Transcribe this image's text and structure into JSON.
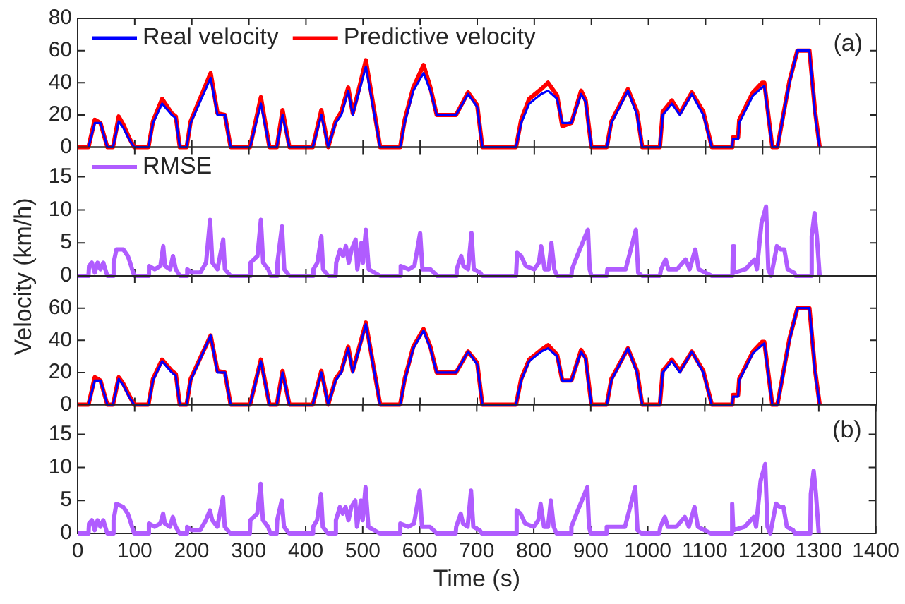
{
  "chart_data": [
    {
      "type": "line",
      "annotations": [
        "(a)"
      ],
      "legend": "top left",
      "tick_labels": "y",
      "xlim": [
        0,
        1400
      ],
      "xticks": [
        0,
        100,
        200,
        300,
        400,
        500,
        600,
        700,
        800,
        900,
        1000,
        1100,
        1200,
        1300,
        1400
      ],
      "ylim": [
        0,
        80
      ],
      "yticks": [
        0,
        20,
        40,
        60,
        80
      ],
      "series": [
        {
          "name": "Real velocity",
          "color": "#0000ff",
          "x": [
            19,
            30,
            40,
            52,
            62,
            72,
            80,
            90,
            99,
            124,
            132,
            148,
            165,
            172,
            179,
            191,
            198,
            233,
            245,
            258,
            268,
            302,
            321,
            336,
            349,
            359,
            371,
            412,
            427,
            439,
            452,
            462,
            474,
            482,
            492,
            505,
            530,
            565,
            573,
            588,
            606,
            618,
            629,
            663,
            684,
            700,
            709,
            768,
            777,
            791,
            812,
            824,
            840,
            849,
            865,
            882,
            890,
            900,
            927,
            935,
            964,
            980,
            989,
            1020,
            1025,
            1041,
            1055,
            1076,
            1096,
            1111,
            1147,
            1148,
            1157,
            1159,
            1183,
            1199,
            1203,
            1217,
            1226,
            1247,
            1261,
            1282,
            1292,
            1300
          ],
          "values": [
            0,
            15,
            15,
            0,
            0,
            16,
            12,
            5,
            0,
            0,
            15,
            27,
            20,
            18,
            0,
            0,
            15,
            43,
            20,
            20,
            0,
            0,
            27,
            0,
            0,
            20,
            0,
            0,
            20,
            0,
            15,
            20,
            35,
            20,
            33,
            50,
            0,
            0,
            15,
            35,
            46,
            35,
            20,
            20,
            33,
            25,
            0,
            0,
            15,
            27,
            33,
            35,
            30,
            15,
            15,
            33,
            28,
            0,
            0,
            15,
            35,
            20,
            0,
            0,
            20,
            27,
            20,
            33,
            20,
            0,
            0,
            5,
            5,
            15,
            32,
            37,
            38,
            0,
            0,
            40,
            60,
            60,
            20,
            0
          ]
        },
        {
          "name": "Predictive velocity",
          "color": "#ff0000",
          "x": [
            0,
            19,
            30,
            40,
            52,
            62,
            72,
            80,
            90,
            99,
            124,
            132,
            148,
            165,
            172,
            179,
            191,
            198,
            233,
            245,
            258,
            268,
            302,
            321,
            336,
            349,
            359,
            371,
            412,
            427,
            439,
            452,
            462,
            474,
            482,
            492,
            505,
            530,
            565,
            573,
            588,
            606,
            618,
            629,
            663,
            684,
            700,
            709,
            768,
            777,
            791,
            812,
            824,
            840,
            849,
            865,
            882,
            890,
            900,
            927,
            935,
            964,
            980,
            989,
            1020,
            1025,
            1041,
            1055,
            1076,
            1096,
            1111,
            1147,
            1148,
            1157,
            1159,
            1183,
            1199,
            1203,
            1217,
            1226,
            1247,
            1261,
            1282,
            1292,
            1300
          ],
          "values": [
            0,
            0,
            17,
            15,
            0,
            0,
            19,
            14,
            6,
            0,
            0,
            16,
            30,
            21,
            19,
            0,
            0,
            16,
            46,
            21,
            20,
            0,
            0,
            31,
            0,
            0,
            23,
            0,
            0,
            23,
            0,
            16,
            22,
            37,
            21,
            35,
            54,
            0,
            0,
            17,
            37,
            51,
            37,
            20,
            20,
            34,
            26,
            0,
            0,
            17,
            30,
            36,
            40,
            32,
            13,
            15,
            35,
            29,
            0,
            0,
            16,
            36,
            22,
            0,
            0,
            22,
            29,
            21,
            34,
            22,
            0,
            0,
            6,
            6,
            17,
            34,
            40,
            40,
            0,
            0,
            41,
            60,
            60,
            22,
            0
          ]
        }
      ]
    },
    {
      "type": "line",
      "ylabel": "Velocity (km/h)",
      "legend": "top left",
      "tick_labels": "y",
      "xlim": [
        0,
        1400
      ],
      "xticks": [
        0,
        100,
        200,
        300,
        400,
        500,
        600,
        700,
        800,
        900,
        1000,
        1100,
        1200,
        1300,
        1400
      ],
      "ylim": [
        0,
        19.5
      ],
      "yticks": [
        0,
        5,
        10,
        15
      ],
      "series": [
        {
          "name": "RMSE",
          "color": "#b05cff",
          "x": [
            0,
            19,
            20,
            25,
            30,
            35,
            40,
            45,
            52,
            62,
            63,
            68,
            80,
            88,
            92,
            99,
            124,
            125,
            135,
            145,
            150,
            153,
            162,
            167,
            172,
            179,
            191,
            192,
            200,
            215,
            225,
            232,
            236,
            245,
            255,
            258,
            268,
            302,
            303,
            315,
            321,
            325,
            334,
            338,
            349,
            350,
            358,
            362,
            371,
            412,
            413,
            420,
            427,
            430,
            439,
            452,
            453,
            460,
            465,
            470,
            475,
            480,
            487,
            490,
            497,
            500,
            505,
            510,
            530,
            565,
            566,
            580,
            590,
            600,
            604,
            618,
            630,
            663,
            664,
            672,
            676,
            684,
            690,
            694,
            705,
            709,
            768,
            770,
            777,
            785,
            800,
            808,
            812,
            818,
            825,
            830,
            835,
            840,
            865,
            866,
            875,
            894,
            897,
            900,
            927,
            928,
            945,
            960,
            978,
            982,
            989,
            1020,
            1022,
            1030,
            1035,
            1050,
            1065,
            1072,
            1082,
            1088,
            1111,
            1147,
            1148,
            1150,
            1170,
            1186,
            1190,
            1198,
            1206,
            1210,
            1215,
            1225,
            1232,
            1238,
            1244,
            1255,
            1258,
            1285,
            1286,
            1291,
            1295,
            1300
          ],
          "values": [
            0,
            0,
            1.5,
            2,
            0.5,
            2,
            1,
            2,
            0,
            0,
            2,
            4,
            4,
            3,
            2,
            0,
            0,
            1.5,
            1,
            1.5,
            4.5,
            1.5,
            1,
            3,
            1,
            0,
            0,
            1,
            0.5,
            0.5,
            2,
            8.5,
            2,
            1,
            5.5,
            1,
            0,
            0,
            2,
            3,
            8.5,
            2,
            1,
            0,
            0,
            2,
            7.5,
            1,
            0,
            0,
            1,
            2,
            6,
            1,
            0,
            0,
            2,
            4,
            3,
            4.5,
            2,
            4,
            5.5,
            1,
            5,
            2,
            7,
            1,
            0,
            0,
            1.5,
            1,
            1.5,
            6.5,
            1,
            1,
            0,
            0,
            1,
            3,
            1.5,
            1,
            6.5,
            1,
            0.5,
            0,
            0,
            3.5,
            3,
            1.5,
            1,
            2,
            4.5,
            1,
            1,
            5,
            1,
            0,
            0,
            1,
            3,
            7,
            1,
            0,
            0,
            1,
            1,
            1,
            7,
            0.5,
            0,
            0,
            1,
            2.5,
            1,
            1,
            2.5,
            1,
            4,
            1,
            0,
            0,
            4.5,
            0.5,
            1,
            2.5,
            1,
            8,
            10.5,
            1,
            0,
            4.5,
            4,
            4,
            1,
            0.5,
            0,
            0,
            6,
            9.5,
            6,
            0
          ]
        }
      ]
    },
    {
      "type": "line",
      "tick_labels": "y",
      "xlim": [
        0,
        1400
      ],
      "xticks": [
        0,
        100,
        200,
        300,
        400,
        500,
        600,
        700,
        800,
        900,
        1000,
        1100,
        1200,
        1300,
        1400
      ],
      "ylim": [
        0,
        80
      ],
      "yticks": [
        0,
        20,
        40,
        60
      ],
      "series": [
        {
          "color": "#0000ff",
          "x": [
            19,
            30,
            40,
            52,
            62,
            72,
            80,
            90,
            99,
            124,
            132,
            148,
            165,
            172,
            179,
            191,
            198,
            233,
            245,
            258,
            268,
            302,
            321,
            336,
            349,
            359,
            371,
            412,
            427,
            439,
            452,
            462,
            474,
            482,
            492,
            505,
            530,
            565,
            573,
            588,
            606,
            618,
            629,
            663,
            684,
            700,
            709,
            768,
            777,
            791,
            812,
            824,
            840,
            849,
            865,
            882,
            890,
            900,
            927,
            935,
            964,
            980,
            989,
            1020,
            1025,
            1041,
            1055,
            1076,
            1096,
            1111,
            1147,
            1148,
            1157,
            1159,
            1183,
            1199,
            1203,
            1217,
            1226,
            1247,
            1261,
            1282,
            1292,
            1300
          ],
          "values": [
            0,
            15,
            15,
            0,
            0,
            16,
            12,
            5,
            0,
            0,
            15,
            27,
            20,
            18,
            0,
            0,
            15,
            43,
            20,
            20,
            0,
            0,
            27,
            0,
            0,
            20,
            0,
            0,
            20,
            0,
            15,
            20,
            35,
            20,
            33,
            50,
            0,
            0,
            15,
            35,
            46,
            35,
            20,
            20,
            33,
            25,
            0,
            0,
            15,
            27,
            33,
            35,
            30,
            15,
            15,
            33,
            28,
            0,
            0,
            15,
            35,
            20,
            0,
            0,
            20,
            27,
            20,
            33,
            20,
            0,
            0,
            5,
            5,
            15,
            32,
            37,
            38,
            0,
            0,
            40,
            60,
            60,
            20,
            0
          ]
        },
        {
          "color": "#ff0000",
          "x": [
            0,
            19,
            30,
            40,
            52,
            62,
            72,
            80,
            90,
            99,
            124,
            132,
            148,
            165,
            172,
            179,
            191,
            198,
            233,
            245,
            258,
            268,
            302,
            321,
            336,
            349,
            359,
            371,
            412,
            427,
            439,
            452,
            462,
            474,
            482,
            492,
            505,
            530,
            565,
            573,
            588,
            606,
            618,
            629,
            663,
            684,
            700,
            709,
            768,
            777,
            791,
            812,
            824,
            840,
            849,
            865,
            882,
            890,
            900,
            927,
            935,
            964,
            980,
            989,
            1020,
            1025,
            1041,
            1055,
            1076,
            1096,
            1111,
            1147,
            1148,
            1157,
            1159,
            1183,
            1199,
            1203,
            1217,
            1226,
            1247,
            1261,
            1282,
            1292,
            1300
          ],
          "values": [
            0,
            0,
            17,
            15,
            0,
            0,
            17,
            13,
            6,
            0,
            0,
            16,
            28,
            21,
            19,
            0,
            0,
            16,
            43,
            21,
            20,
            0,
            0,
            28,
            0,
            0,
            21,
            0,
            0,
            21,
            0,
            16,
            21,
            36,
            21,
            34,
            51,
            0,
            0,
            16,
            36,
            47,
            36,
            20,
            20,
            33,
            26,
            0,
            0,
            16,
            28,
            34,
            37,
            31,
            15,
            15,
            34,
            29,
            0,
            0,
            16,
            35,
            21,
            0,
            0,
            21,
            28,
            21,
            33,
            21,
            0,
            0,
            6,
            6,
            16,
            33,
            39,
            39,
            0,
            0,
            41,
            60,
            60,
            21,
            0
          ]
        }
      ]
    },
    {
      "type": "line",
      "annotations": [
        "(b)"
      ],
      "xlabel": "Time (s)",
      "xlim": [
        0,
        1400
      ],
      "xticks": [
        0,
        100,
        200,
        300,
        400,
        500,
        600,
        700,
        800,
        900,
        1000,
        1100,
        1200,
        1300,
        1400
      ],
      "ylim": [
        0,
        19.5
      ],
      "yticks": [
        0,
        5,
        10,
        15
      ],
      "series": [
        {
          "color": "#b05cff",
          "x": [
            0,
            19,
            20,
            25,
            30,
            35,
            40,
            45,
            52,
            62,
            63,
            68,
            80,
            88,
            92,
            99,
            124,
            125,
            135,
            145,
            150,
            153,
            162,
            167,
            172,
            179,
            191,
            192,
            200,
            215,
            225,
            232,
            236,
            245,
            255,
            258,
            268,
            302,
            303,
            315,
            321,
            325,
            334,
            338,
            349,
            350,
            358,
            362,
            371,
            412,
            413,
            420,
            427,
            430,
            439,
            452,
            453,
            460,
            465,
            470,
            475,
            480,
            487,
            490,
            497,
            500,
            505,
            510,
            530,
            565,
            566,
            580,
            590,
            600,
            604,
            618,
            630,
            663,
            664,
            672,
            676,
            684,
            690,
            694,
            705,
            709,
            768,
            770,
            777,
            785,
            800,
            808,
            812,
            818,
            825,
            830,
            835,
            840,
            865,
            866,
            875,
            894,
            897,
            900,
            927,
            928,
            945,
            960,
            978,
            982,
            989,
            1020,
            1022,
            1030,
            1035,
            1050,
            1065,
            1072,
            1082,
            1088,
            1111,
            1147,
            1148,
            1150,
            1170,
            1186,
            1190,
            1198,
            1206,
            1210,
            1215,
            1225,
            1232,
            1238,
            1244,
            1255,
            1258,
            1285,
            1286,
            1291,
            1295,
            1300
          ],
          "values": [
            0,
            0,
            1.5,
            2,
            0.5,
            2,
            1,
            2,
            0,
            0,
            2,
            4.5,
            4,
            3,
            2,
            0,
            0,
            1.5,
            1,
            1.5,
            3,
            1.5,
            1,
            2.5,
            1,
            0,
            0,
            1,
            0.5,
            0.5,
            2,
            3.5,
            2,
            1,
            5.5,
            1,
            0,
            0,
            2,
            3,
            7.5,
            2,
            1,
            0,
            0,
            2,
            5,
            1,
            0,
            0,
            1,
            2,
            6,
            1,
            0,
            0,
            2,
            4,
            3,
            4,
            2,
            4,
            5,
            1,
            5,
            2,
            7,
            1,
            0,
            0,
            1.5,
            1,
            1.5,
            6.5,
            1,
            1,
            0,
            0,
            1,
            3,
            1.5,
            1,
            6.5,
            1,
            0.5,
            0,
            0,
            3.5,
            3,
            1.5,
            1,
            2,
            4.5,
            1,
            1,
            5,
            1,
            0,
            0,
            1,
            3,
            7,
            1,
            0,
            0,
            1,
            1,
            1,
            7,
            0.5,
            0,
            0,
            1,
            2.5,
            1,
            1,
            2.5,
            1,
            4,
            1,
            0,
            0,
            4.5,
            0.5,
            1,
            2.5,
            1,
            8,
            10.5,
            1,
            0,
            4.5,
            4,
            4,
            1,
            0.5,
            0,
            0,
            6,
            9.5,
            6,
            0
          ]
        }
      ]
    }
  ]
}
